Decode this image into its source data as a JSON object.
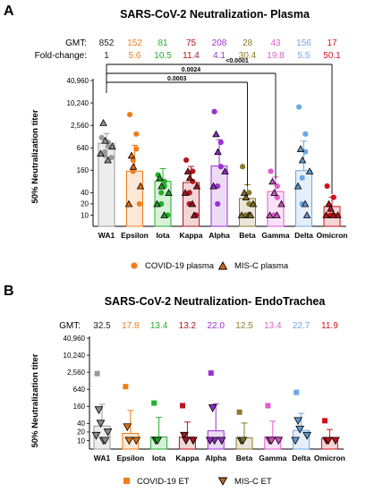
{
  "chart_data": [
    {
      "panel": "A",
      "type": "bar",
      "title": "SARS-CoV-2 Neutralization- Plasma",
      "ylabel": "50% Neutralization titer",
      "yscale": "log",
      "yticks": [
        "10",
        "20",
        "40",
        "160",
        "640",
        "2,560",
        "10,240",
        "40,960"
      ],
      "ytick_values": [
        10,
        20,
        40,
        160,
        640,
        2560,
        10240,
        40960
      ],
      "categories": [
        "WA1",
        "Epsilon",
        "Iota",
        "Kappa",
        "Alpha",
        "Beta",
        "Gamma",
        "Delta",
        "Omicron"
      ],
      "colors": [
        "#9a9a9a",
        "#f07d1a",
        "#22b02a",
        "#b3161f",
        "#9b32d1",
        "#8c7a2b",
        "#e25ad0",
        "#6aa8e8",
        "#d1121b"
      ],
      "gmt_label": "GMT:",
      "gmt": [
        "852",
        "152",
        "81",
        "75",
        "208",
        "28",
        "43",
        "156",
        "17"
      ],
      "gmt_values": [
        852,
        152,
        81,
        75,
        208,
        28,
        43,
        156,
        17
      ],
      "fold_label": "Fold-change:",
      "fold_change": [
        "1",
        "5.6",
        "10.5",
        "11.4",
        "4.1",
        "30.4",
        "19.8",
        "5.5",
        "50.1"
      ],
      "sig_brackets": [
        {
          "from": "WA1",
          "to": "Omicron",
          "p": "<0.0001"
        },
        {
          "from": "WA1",
          "to": "Gamma",
          "p": "0.0024"
        },
        {
          "from": "WA1",
          "to": "Beta",
          "p": "0.0003"
        }
      ],
      "series": [
        {
          "name": "COVID-19 plasma",
          "marker": "circle",
          "values": [
            [
              1200,
              900,
              700,
              500,
              400,
              350
            ],
            [
              5000,
              1500,
              600,
              300,
              150,
              20
            ],
            [
              120,
              80,
              60,
              40,
              20,
              10
            ],
            [
              300,
              150,
              80,
              40,
              20,
              10
            ],
            [
              6000,
              900,
              200,
              60,
              20
            ],
            [
              200,
              40,
              20,
              10,
              10
            ],
            [
              150,
              60,
              30,
              10
            ],
            [
              8000,
              1500,
              500,
              100,
              20
            ],
            [
              60,
              30,
              10,
              10
            ]
          ]
        },
        {
          "name": "MIS-C plasma",
          "marker": "triangle",
          "values": [
            [
              3000,
              1000,
              700,
              450,
              300
            ],
            [
              400,
              200,
              60,
              20
            ],
            [
              100,
              60,
              40,
              20,
              10
            ],
            [
              150,
              100,
              60,
              40,
              20,
              10
            ],
            [
              1500,
              500,
              150,
              60
            ],
            [
              40,
              30,
              20,
              10,
              10,
              10
            ],
            [
              80,
              40,
              20,
              10,
              10
            ],
            [
              600,
              300,
              150,
              60,
              20,
              10
            ],
            [
              20,
              15,
              10,
              10,
              10
            ]
          ]
        }
      ],
      "legend_position": "bottom"
    },
    {
      "panel": "B",
      "type": "bar",
      "title": "SARS-CoV-2 Neutralization- EndoTrachea",
      "ylabel": "50% Neutralization titer",
      "yscale": "log",
      "yticks": [
        "10",
        "20",
        "40",
        "160",
        "640",
        "2,560",
        "10,240",
        "40,960"
      ],
      "ytick_values": [
        10,
        20,
        40,
        160,
        640,
        2560,
        10240,
        40960
      ],
      "categories": [
        "WA1",
        "Epsilon",
        "Iota",
        "Kappa",
        "Alpha",
        "Beta",
        "Gamma",
        "Delta",
        "Omicron"
      ],
      "colors": [
        "#9a9a9a",
        "#f07d1a",
        "#22b02a",
        "#b3161f",
        "#9b32d1",
        "#8c7a2b",
        "#e25ad0",
        "#6aa8e8",
        "#d1121b"
      ],
      "gmt_label": "GMT:",
      "gmt": [
        "32.5",
        "17.8",
        "13.4",
        "13.2",
        "22.0",
        "12.5",
        "13.4",
        "22.7",
        "11.9"
      ],
      "gmt_values": [
        32.5,
        17.8,
        13.4,
        13.2,
        22.0,
        12.5,
        13.4,
        22.7,
        11.9
      ],
      "series": [
        {
          "name": "COVID-19 ET",
          "marker": "square",
          "values": [
            [
              2300
            ],
            [
              800
            ],
            [
              210
            ],
            [
              170
            ],
            [
              2400
            ],
            [
              100
            ],
            [
              170
            ],
            [
              500
            ],
            [
              50
            ]
          ]
        },
        {
          "name": "MIS-C ET",
          "marker": "triangle-down",
          "values": [
            [
              120,
              40,
              20,
              15,
              10,
              10
            ],
            [
              30,
              10,
              10
            ],
            [
              10,
              10
            ],
            [
              15,
              10,
              10
            ],
            [
              140,
              10,
              10,
              10
            ],
            [
              10,
              10
            ],
            [
              10,
              10,
              10
            ],
            [
              50,
              25,
              15,
              10
            ],
            [
              10,
              10,
              10
            ]
          ]
        }
      ],
      "legend_position": "bottom"
    }
  ]
}
